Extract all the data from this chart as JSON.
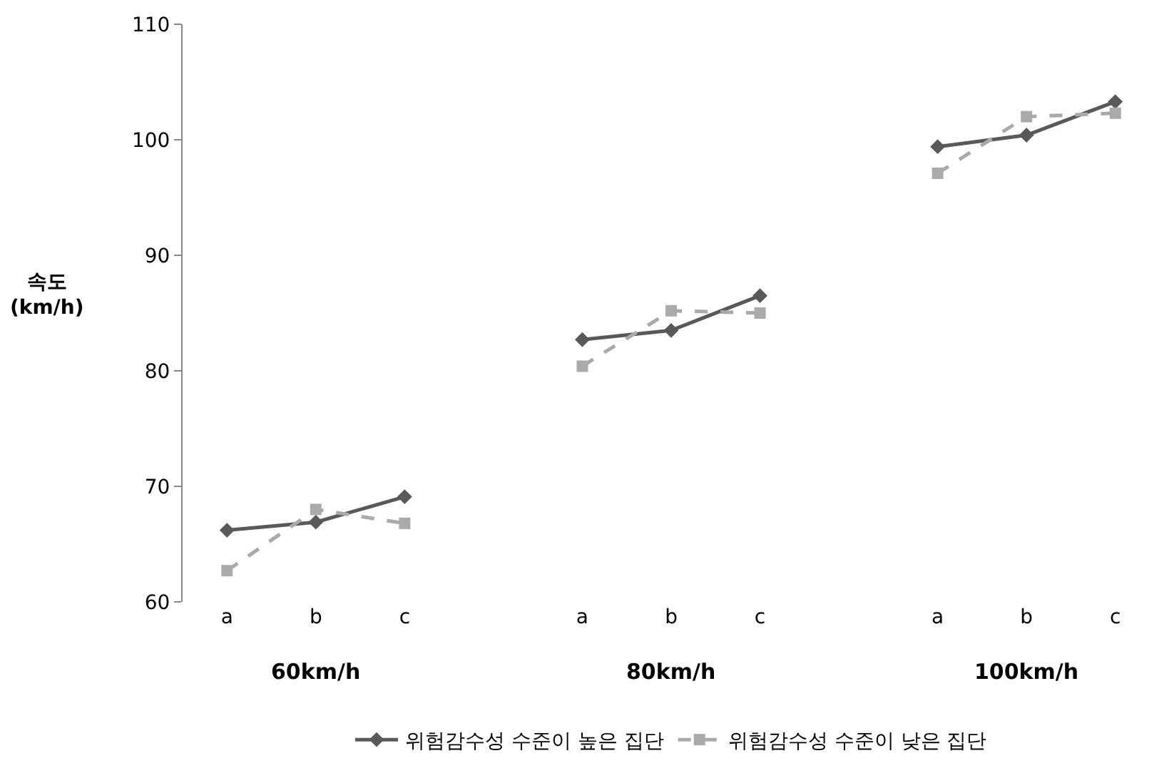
{
  "chart_data": {
    "type": "line",
    "ylabel": "속도\n(km/h)",
    "categories": [
      "a",
      "b",
      "c",
      null,
      "a",
      "b",
      "c",
      null,
      "a",
      "b",
      "c"
    ],
    "series": [
      {
        "name": "위험감수성 수준이 높은 집단",
        "color": "#595959",
        "marker": "diamond",
        "line_style": "solid",
        "values": [
          66.2,
          66.9,
          69.1,
          null,
          82.7,
          83.5,
          86.5,
          null,
          99.4,
          100.4,
          103.3
        ]
      },
      {
        "name": "위험감수성 수준이 낮은 집단",
        "color": "#aaaaaa",
        "marker": "square",
        "line_style": "dashed",
        "values": [
          62.7,
          68.0,
          66.8,
          null,
          80.4,
          85.2,
          85.0,
          null,
          97.1,
          102.0,
          102.3
        ]
      }
    ],
    "annotations": [
      "60km/h",
      "80km/h",
      "100km/h"
    ],
    "ylim": [
      60,
      110
    ],
    "yticks": [
      60,
      70,
      80,
      90,
      100,
      110
    ],
    "legend": "bottom"
  }
}
